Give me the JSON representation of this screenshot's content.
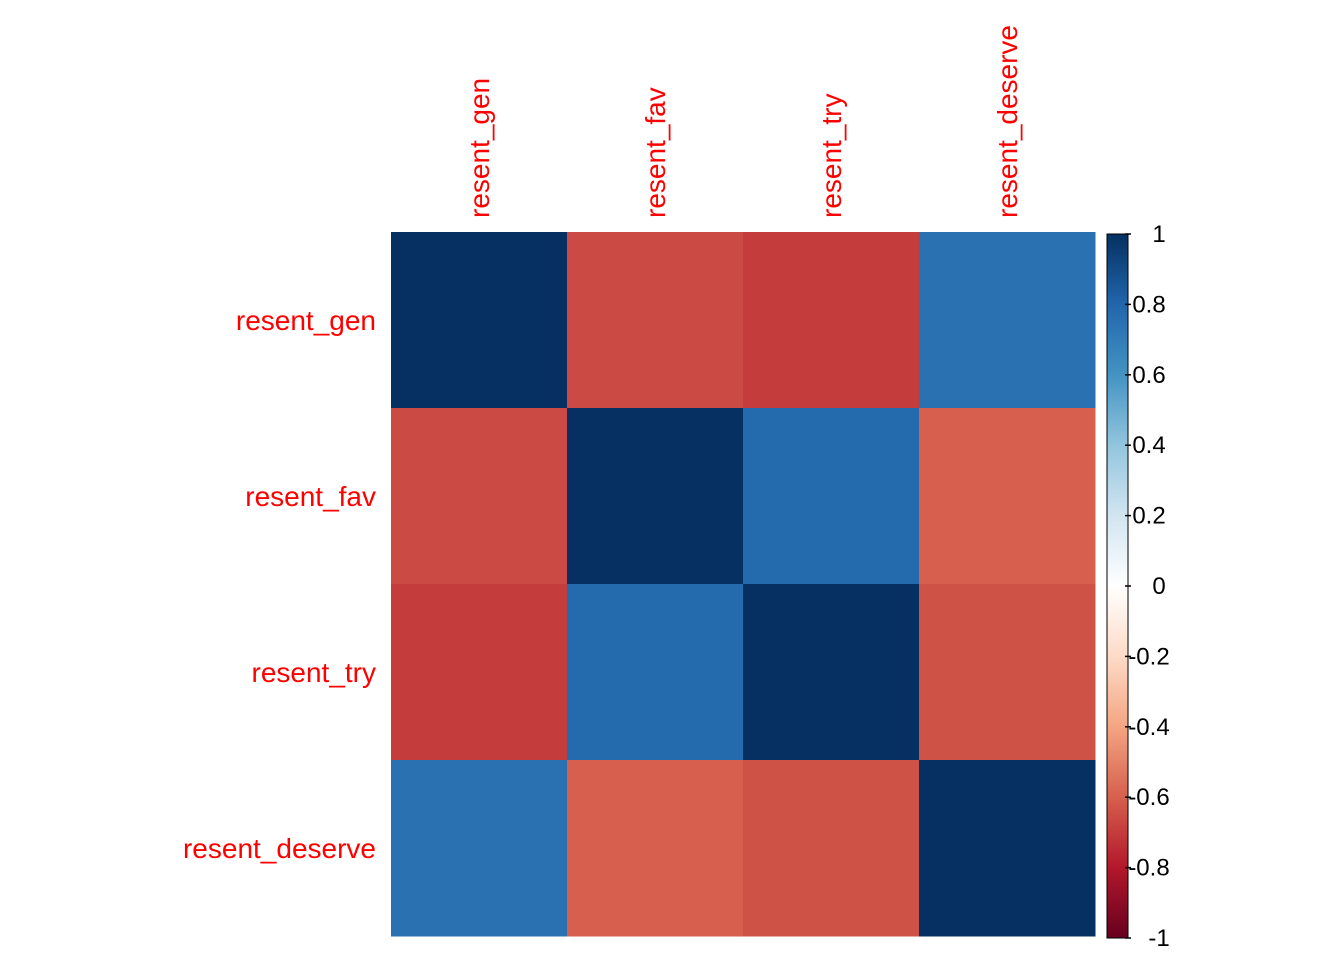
{
  "chart_data": {
    "type": "heatmap",
    "title": "",
    "row_labels": [
      "resent_gen",
      "resent_fav",
      "resent_try",
      "resent_deserve"
    ],
    "col_labels": [
      "resent_gen",
      "resent_fav",
      "resent_try",
      "resent_deserve"
    ],
    "values": [
      [
        1.0,
        -0.66,
        -0.7,
        0.75
      ],
      [
        -0.66,
        1.0,
        0.78,
        -0.6
      ],
      [
        -0.7,
        0.78,
        1.0,
        -0.64
      ],
      [
        0.75,
        -0.6,
        -0.64,
        1.0
      ]
    ],
    "color_range": [
      -1,
      1
    ],
    "colorbar_ticks": [
      {
        "value": 1,
        "label": "1"
      },
      {
        "value": 0.8,
        "label": "0.8"
      },
      {
        "value": 0.6,
        "label": "0.6"
      },
      {
        "value": 0.4,
        "label": "0.4"
      },
      {
        "value": 0.2,
        "label": "0.2"
      },
      {
        "value": 0,
        "label": "0"
      },
      {
        "value": -0.2,
        "label": "-0.2"
      },
      {
        "value": -0.4,
        "label": "-0.4"
      },
      {
        "value": -0.6,
        "label": "-0.6"
      },
      {
        "value": -0.8,
        "label": "-0.8"
      },
      {
        "value": -1,
        "label": "-1"
      }
    ],
    "colorscale": [
      {
        "value": -1.0,
        "color": "#67001F"
      },
      {
        "value": -0.8,
        "color": "#B2182B"
      },
      {
        "value": -0.6,
        "color": "#D6604D"
      },
      {
        "value": -0.4,
        "color": "#F4A582"
      },
      {
        "value": -0.2,
        "color": "#FDDBC7"
      },
      {
        "value": 0.0,
        "color": "#FFFFFF"
      },
      {
        "value": 0.2,
        "color": "#D1E5F0"
      },
      {
        "value": 0.4,
        "color": "#92C5DE"
      },
      {
        "value": 0.6,
        "color": "#4393C3"
      },
      {
        "value": 0.8,
        "color": "#2166AC"
      },
      {
        "value": 1.0,
        "color": "#053061"
      }
    ],
    "label_color": "#FF0000",
    "tick_label_color": "#000000",
    "legend_position": "right"
  }
}
